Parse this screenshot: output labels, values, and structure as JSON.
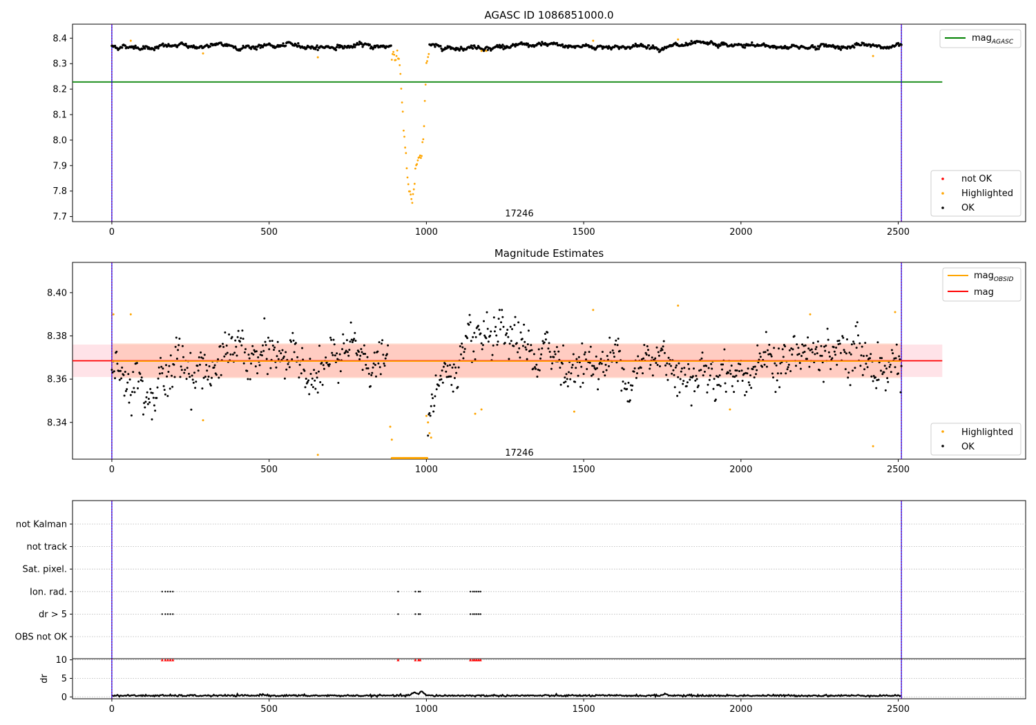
{
  "colors": {
    "ok": "#000000",
    "highlighted": "#ffa500",
    "not_ok": "#ff0000",
    "agasc_line": "#008000",
    "mag_line": "#ff0000",
    "obsid_line": "#ffa500",
    "band_mag": "#ffc0cb",
    "band_obsid": "#ffa07a",
    "marker": "#800080",
    "boundary": "#0000ff"
  },
  "chart_data": [
    {
      "type": "scatter",
      "title": "AGASC ID 1086851000.0",
      "xlim": [
        -125,
        2905
      ],
      "ylim": [
        7.68,
        8.455
      ],
      "xticks": [
        "0",
        "500",
        "1000",
        "1500",
        "2000",
        "2500"
      ],
      "xtick_values": [
        0,
        500,
        1000,
        1500,
        2000,
        2500
      ],
      "yticks": [
        "7.7",
        "7.8",
        "7.9",
        "8.0",
        "8.1",
        "8.2",
        "8.3",
        "8.4"
      ],
      "ytick_values": [
        7.7,
        7.8,
        7.9,
        8.0,
        8.1,
        8.2,
        8.3,
        8.4
      ],
      "mag_agasc": 8.228,
      "mag_agasc_xrange": [
        -125,
        2640
      ],
      "obs_bounds": [
        0,
        2510
      ],
      "annotation": {
        "text": "17246",
        "x": 1250,
        "y": 7.695
      },
      "legend_lines": [
        {
          "label": "mag",
          "subscript": "AGASC"
        }
      ],
      "legend_points": [
        {
          "label": "not OK"
        },
        {
          "label": "Highlighted"
        },
        {
          "label": "OK"
        }
      ],
      "series": [
        {
          "name": "OK",
          "baseline": 8.368,
          "noise": 0.006,
          "x_start": 0,
          "x_end": 2510,
          "step": 2.5
        },
        {
          "name": "Highlighted",
          "dip": [
            [
              890,
              8.34
            ],
            [
              900,
              8.325
            ],
            [
              915,
              8.3
            ],
            [
              925,
              8.1
            ],
            [
              935,
              7.93
            ],
            [
              945,
              7.8
            ],
            [
              955,
              7.745
            ],
            [
              965,
              7.88
            ],
            [
              975,
              7.93
            ],
            [
              985,
              7.92
            ],
            [
              992,
              8.05
            ],
            [
              1000,
              8.3
            ],
            [
              1008,
              8.345
            ]
          ],
          "outliers": [
            [
              60,
              8.39
            ],
            [
              290,
              8.34
            ],
            [
              655,
              8.325
            ],
            [
              1175,
              8.35
            ],
            [
              1190,
              8.35
            ],
            [
              1530,
              8.39
            ],
            [
              1800,
              8.395
            ],
            [
              2420,
              8.33
            ]
          ]
        }
      ]
    },
    {
      "type": "scatter",
      "title": "Magnitude Estimates",
      "xlim": [
        -125,
        2905
      ],
      "ylim": [
        8.323,
        8.414
      ],
      "xticks": [
        "0",
        "500",
        "1000",
        "1500",
        "2000",
        "2500"
      ],
      "xtick_values": [
        0,
        500,
        1000,
        1500,
        2000,
        2500
      ],
      "yticks": [
        "8.34",
        "8.36",
        "8.38",
        "8.40"
      ],
      "ytick_values": [
        8.34,
        8.36,
        8.38,
        8.4
      ],
      "mag": 8.3685,
      "mag_band": [
        8.361,
        8.376
      ],
      "mag_obsid": 8.3683,
      "obsid_band": [
        8.3605,
        8.3765
      ],
      "line_xrange": [
        -125,
        2640
      ],
      "obsid_xrange": [
        0,
        2510
      ],
      "obs_bounds": [
        0,
        2510
      ],
      "annotation": {
        "text": "17246",
        "x": 1250,
        "y": 8.3253
      },
      "legend_lines": [
        {
          "label": "mag",
          "subscript": "OBSID"
        },
        {
          "label": "mag",
          "subscript": ""
        }
      ],
      "legend_points": [
        {
          "label": "Highlighted"
        },
        {
          "label": "OK"
        }
      ],
      "series": [
        {
          "name": "OK",
          "baseline": 8.368,
          "noise": 0.0065,
          "x_start": 0,
          "x_end": 2510,
          "step": 2.5
        },
        {
          "name": "Highlighted",
          "flat": {
            "x_start": 890,
            "x_end": 1003,
            "y": 8.3235
          },
          "ramp": [
            [
              885,
              8.338
            ],
            [
              890,
              8.332
            ],
            [
              1000,
              8.343
            ],
            [
              1005,
              8.34
            ],
            [
              1010,
              8.335
            ],
            [
              1015,
              8.333
            ]
          ],
          "outliers": [
            [
              5,
              8.39
            ],
            [
              60,
              8.39
            ],
            [
              290,
              8.341
            ],
            [
              655,
              8.325
            ],
            [
              1155,
              8.344
            ],
            [
              1175,
              8.346
            ],
            [
              1470,
              8.345
            ],
            [
              1530,
              8.392
            ],
            [
              1800,
              8.394
            ],
            [
              1965,
              8.346
            ],
            [
              2220,
              8.39
            ],
            [
              2420,
              8.329
            ],
            [
              2490,
              8.391
            ]
          ]
        }
      ]
    },
    {
      "type": "scatter",
      "title": "",
      "xlim": [
        -125,
        2905
      ],
      "xticks": [],
      "categories": [
        "not Kalman",
        "not track",
        "Sat. pixel.",
        "Ion. rad.",
        "dr > 5",
        "OBS not OK"
      ],
      "flag_x": {
        "Ion. rad.": [
          160,
          170,
          178,
          186,
          194,
          910,
          965,
          975,
          980,
          1140,
          1148,
          1154,
          1160,
          1166,
          1172
        ],
        "dr > 5": [
          160,
          170,
          178,
          186,
          194,
          910,
          965,
          975,
          980,
          1140,
          1148,
          1154,
          1160,
          1166,
          1172
        ]
      },
      "obs_bounds": [
        0,
        2510
      ]
    },
    {
      "type": "line",
      "title": "",
      "ylabel": "dr",
      "xlim": [
        -125,
        2905
      ],
      "ylim": [
        -0.5,
        10.3
      ],
      "xticks": [
        "0",
        "500",
        "1000",
        "1500",
        "2000",
        "2500"
      ],
      "xtick_values": [
        0,
        500,
        1000,
        1500,
        2000,
        2500
      ],
      "yticks": [
        "0",
        "5",
        "10"
      ],
      "ytick_values": [
        0,
        5,
        10
      ],
      "dr_baseline": 0.35,
      "dr_bumps": [
        [
          960,
          1.2
        ],
        [
          985,
          1.4
        ],
        [
          1760,
          0.8
        ],
        [
          480,
          0.7
        ]
      ],
      "clipped_x": [
        160,
        170,
        178,
        186,
        194,
        910,
        965,
        975,
        980,
        1140,
        1148,
        1154,
        1160,
        1166,
        1172
      ],
      "clip_value": 10,
      "obs_bounds": [
        0,
        2510
      ]
    }
  ]
}
